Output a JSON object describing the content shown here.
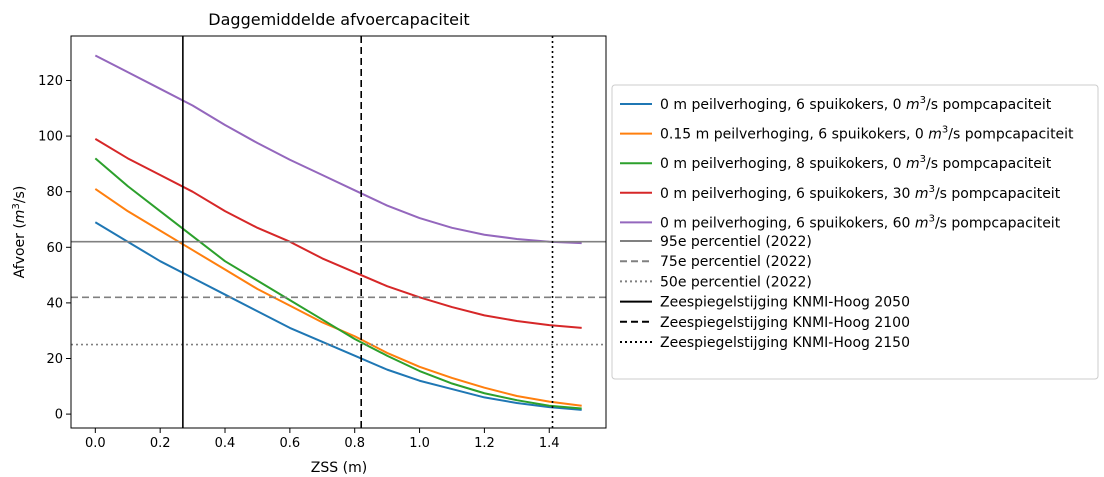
{
  "chart_data": {
    "type": "line",
    "title": "Daggemiddelde afvoercapaciteit",
    "xlabel": "ZSS (m)",
    "ylabel": {
      "main": "Afvoer (",
      "unit": "m",
      "sup": "3",
      "rest": "/s)"
    },
    "xlim": [
      -0.075,
      1.575
    ],
    "ylim": [
      -5,
      136
    ],
    "xticks": [
      "0.0",
      "0.2",
      "0.4",
      "0.6",
      "0.8",
      "1.0",
      "1.2",
      "1.4"
    ],
    "xtick_values": [
      0.0,
      0.2,
      0.4,
      0.6,
      0.8,
      1.0,
      1.2,
      1.4
    ],
    "yticks": [
      "0",
      "20",
      "40",
      "60",
      "80",
      "100",
      "120"
    ],
    "ytick_values": [
      0,
      20,
      40,
      60,
      80,
      100,
      120
    ],
    "grid": false,
    "legend_position": "right, outside plot",
    "x": [
      0.0,
      0.1,
      0.2,
      0.3,
      0.4,
      0.5,
      0.6,
      0.7,
      0.8,
      0.9,
      1.0,
      1.1,
      1.2,
      1.3,
      1.4,
      1.5
    ],
    "series": [
      {
        "name_pre": "0 m peilverhoging, 6 spuikokers, 0 ",
        "name_post": " pompcapaciteit",
        "color": "#1f77b4",
        "values": [
          69,
          62,
          55,
          49,
          43,
          37,
          31,
          26,
          21,
          16,
          12,
          9,
          6,
          4,
          2.5,
          1.5
        ]
      },
      {
        "name_pre": "0.15 m peilverhoging, 6 spuikokers, 0 ",
        "name_post": " pompcapaciteit",
        "color": "#ff7f0e",
        "values": [
          81,
          73,
          66,
          59,
          52,
          45,
          39,
          33,
          28,
          22,
          17,
          13,
          9.5,
          6.5,
          4.5,
          3
        ]
      },
      {
        "name_pre": "0 m peilverhoging, 8 spuikokers, 0 ",
        "name_post": " pompcapaciteit",
        "color": "#2ca02c",
        "values": [
          92,
          82,
          73,
          64,
          55,
          48,
          41,
          34,
          27,
          21,
          15.5,
          11,
          7.5,
          5,
          3,
          2
        ]
      },
      {
        "name_pre": "0 m peilverhoging, 6 spuikokers, 30 ",
        "name_post": " pompcapaciteit",
        "color": "#d62728",
        "values": [
          99,
          92,
          86,
          80,
          73,
          67,
          62,
          56,
          51,
          46,
          42,
          38.5,
          35.5,
          33.5,
          32,
          31
        ]
      },
      {
        "name_pre": "0 m peilverhoging, 6 spuikokers, 60 ",
        "name_post": " pompcapaciteit",
        "color": "#9467bd",
        "values": [
          129,
          123,
          117,
          111,
          104,
          97.5,
          91.5,
          86,
          80.5,
          75,
          70.5,
          67,
          64.5,
          63,
          62,
          61.5
        ]
      }
    ],
    "unit_symbol": "m",
    "unit_sup": "3",
    "unit_rest": "/s",
    "hlines": [
      {
        "label": "95e percentiel (2022)",
        "y": 62,
        "color": "#808080",
        "style": "solid"
      },
      {
        "label": "75e percentiel (2022)",
        "y": 42,
        "color": "#808080",
        "style": "dashed"
      },
      {
        "label": "50e percentiel (2022)",
        "y": 25,
        "color": "#808080",
        "style": "dotted"
      }
    ],
    "vlines": [
      {
        "label": "Zeespiegelstijging KNMI-Hoog 2050",
        "x": 0.27,
        "color": "#000000",
        "style": "solid"
      },
      {
        "label": "Zeespiegelstijging KNMI-Hoog 2100",
        "x": 0.82,
        "color": "#000000",
        "style": "dashed"
      },
      {
        "label": "Zeespiegelstijging KNMI-Hoog 2150",
        "x": 1.41,
        "color": "#000000",
        "style": "dotted"
      }
    ]
  }
}
